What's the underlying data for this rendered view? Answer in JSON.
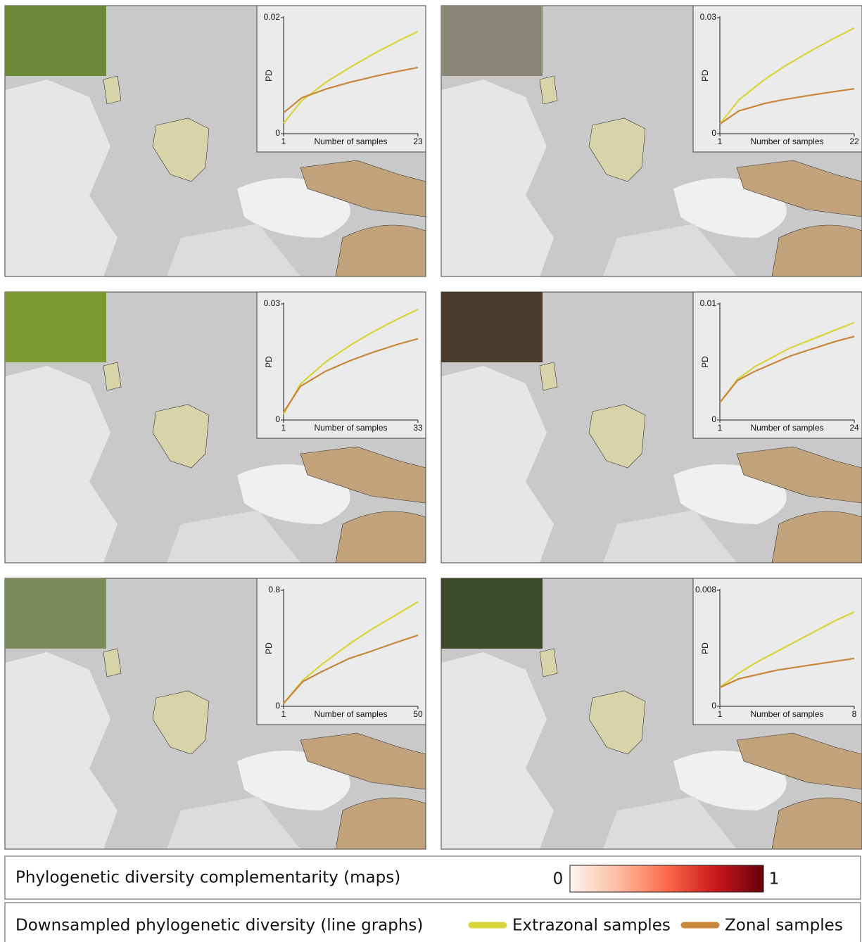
{
  "chart_data": [
    {
      "type": "line",
      "xlabel": "Number of samples",
      "ylabel": "PD",
      "x": [
        1,
        4,
        8,
        12,
        16,
        20,
        23
      ],
      "xlim": [
        1,
        23
      ],
      "xticks": [
        1,
        23
      ],
      "ylim": [
        0,
        0.02
      ],
      "yticks": [
        0,
        0.02
      ],
      "series": [
        {
          "color": "#d9d43a",
          "values": [
            0.0018,
            0.0057,
            0.0089,
            0.0115,
            0.0139,
            0.0161,
            0.0176
          ]
        },
        {
          "color": "#c8873a",
          "values": [
            0.0036,
            0.0062,
            0.0077,
            0.0089,
            0.0099,
            0.0108,
            0.0114
          ]
        }
      ]
    },
    {
      "type": "line",
      "xlabel": "Number of samples",
      "ylabel": "PD",
      "x": [
        1,
        4,
        8,
        11,
        15,
        19,
        22
      ],
      "xlim": [
        1,
        22
      ],
      "xticks": [
        1,
        22
      ],
      "ylim": [
        0,
        0.03
      ],
      "yticks": [
        0,
        0.03
      ],
      "series": [
        {
          "color": "#d9d43a",
          "values": [
            0.0025,
            0.0088,
            0.014,
            0.0173,
            0.0212,
            0.0248,
            0.0273
          ]
        },
        {
          "color": "#c8873a",
          "values": [
            0.0025,
            0.0059,
            0.0078,
            0.0088,
            0.0099,
            0.0109,
            0.0116
          ]
        }
      ]
    },
    {
      "type": "line",
      "xlabel": "Number of samples",
      "ylabel": "PD",
      "x": [
        1,
        5,
        11,
        17,
        22,
        28,
        33
      ],
      "xlim": [
        1,
        33
      ],
      "xticks": [
        1,
        33
      ],
      "ylim": [
        0,
        0.03
      ],
      "yticks": [
        0,
        0.03
      ],
      "series": [
        {
          "color": "#d9d43a",
          "values": [
            0.0015,
            0.0093,
            0.015,
            0.0194,
            0.0226,
            0.026,
            0.0286
          ]
        },
        {
          "color": "#c8873a",
          "values": [
            0.002,
            0.0087,
            0.0126,
            0.0154,
            0.0174,
            0.0195,
            0.021
          ]
        }
      ]
    },
    {
      "type": "line",
      "xlabel": "Number of samples",
      "ylabel": "PD",
      "x": [
        1,
        4,
        7,
        13,
        16,
        21,
        24
      ],
      "xlim": [
        1,
        24
      ],
      "xticks": [
        1,
        24
      ],
      "ylim": [
        0,
        0.01
      ],
      "yticks": [
        0,
        0.01
      ],
      "series": [
        {
          "color": "#d9d43a",
          "values": [
            0.0015,
            0.0035,
            0.0046,
            0.0062,
            0.0068,
            0.0078,
            0.0084
          ]
        },
        {
          "color": "#c8873a",
          "values": [
            0.0015,
            0.0034,
            0.0042,
            0.0055,
            0.006,
            0.0068,
            0.0072
          ]
        }
      ]
    },
    {
      "type": "line",
      "xlabel": "Number of samples",
      "ylabel": "PD",
      "x": [
        1,
        8,
        15,
        25,
        33,
        42,
        50
      ],
      "xlim": [
        1,
        50
      ],
      "xticks": [
        1,
        50
      ],
      "ylim": [
        0,
        0.8
      ],
      "yticks": [
        0,
        0.8
      ],
      "series": [
        {
          "color": "#d9d43a",
          "values": [
            0.02,
            0.18,
            0.29,
            0.43,
            0.53,
            0.63,
            0.72
          ]
        },
        {
          "color": "#c8873a",
          "values": [
            0.02,
            0.17,
            0.24,
            0.33,
            0.38,
            0.44,
            0.49
          ]
        }
      ]
    },
    {
      "type": "line",
      "xlabel": "Number of samples",
      "ylabel": "PD",
      "x": [
        1,
        2,
        3,
        4,
        5,
        6,
        7,
        8
      ],
      "xlim": [
        1,
        8
      ],
      "xticks": [
        1,
        8
      ],
      "ylim": [
        0,
        0.008
      ],
      "yticks": [
        0,
        0.008
      ],
      "series": [
        {
          "color": "#d9d43a",
          "values": [
            0.0013,
            0.0023,
            0.0031,
            0.0038,
            0.0045,
            0.0052,
            0.0059,
            0.0065
          ]
        },
        {
          "color": "#c8873a",
          "values": [
            0.0013,
            0.0019,
            0.0022,
            0.0025,
            0.0027,
            0.0029,
            0.0031,
            0.0033
          ]
        }
      ]
    }
  ],
  "colorbar": {
    "title": "Phylogenetic diversity complementarity (maps)",
    "min": 0,
    "max": 1,
    "colors": [
      "#fff5f0",
      "#fcbba1",
      "#fb6a4a",
      "#cb181d",
      "#67000d"
    ]
  },
  "legend": {
    "title": "Downsampled phylogenetic diversity (line graphs)",
    "items": [
      {
        "name": "Extrazonal samples",
        "color": "#d9d43a"
      },
      {
        "name": "Zonal samples",
        "color": "#c8873a"
      }
    ]
  }
}
